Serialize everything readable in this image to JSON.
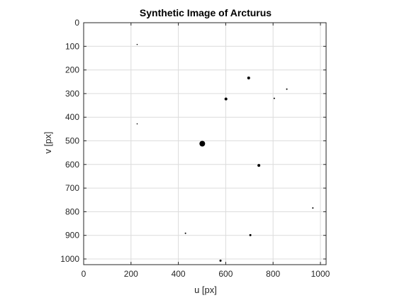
{
  "chart_data": {
    "type": "scatter",
    "title": "Synthetic Image of Arcturus",
    "xlabel": "u [px]",
    "ylabel": "v [px]",
    "xlim": [
      0,
      1024
    ],
    "ylim": [
      0,
      1024
    ],
    "y_reversed": true,
    "grid": true,
    "xticks": [
      0,
      200,
      400,
      600,
      800,
      1000
    ],
    "yticks": [
      0,
      100,
      200,
      300,
      400,
      500,
      600,
      700,
      800,
      900,
      1000
    ],
    "marker_color": "#000000",
    "points": [
      {
        "x": 226,
        "y": 92,
        "size": 1
      },
      {
        "x": 226,
        "y": 428,
        "size": 1
      },
      {
        "x": 501,
        "y": 512,
        "size": 8
      },
      {
        "x": 601,
        "y": 323,
        "size": 4
      },
      {
        "x": 697,
        "y": 234,
        "size": 4
      },
      {
        "x": 805,
        "y": 320,
        "size": 2
      },
      {
        "x": 858,
        "y": 281,
        "size": 2
      },
      {
        "x": 740,
        "y": 604,
        "size": 4
      },
      {
        "x": 968,
        "y": 784,
        "size": 2
      },
      {
        "x": 430,
        "y": 891,
        "size": 2
      },
      {
        "x": 704,
        "y": 899,
        "size": 3
      },
      {
        "x": 578,
        "y": 1007,
        "size": 3
      }
    ]
  }
}
